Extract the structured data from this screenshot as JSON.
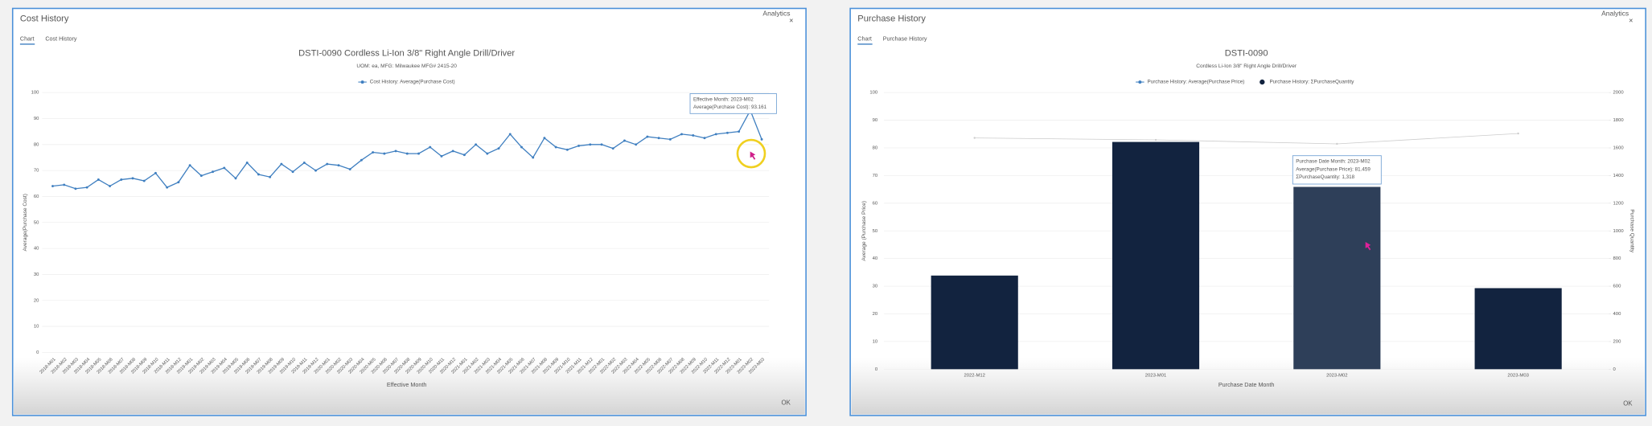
{
  "dialogs": [
    {
      "title": "Cost History",
      "tabs": [
        "Chart",
        "Cost History"
      ],
      "link": "Analytics",
      "close": "×",
      "button": "OK"
    },
    {
      "title": "Purchase History",
      "tabs": [
        "Chart",
        "Purchase History"
      ],
      "link": "Analytics",
      "close": "×",
      "button": "OK"
    }
  ],
  "chart_data": [
    {
      "type": "line",
      "title": "DSTI-0090   Cordless Li-Ion 3/8\" Right Angle Drill/Driver",
      "subtitle": "UOM: ea, MFG: Milwaukee MFG# 2415-20",
      "x_label": "Effective Month",
      "y_label": "Average(Purchase Cost)",
      "categories": [
        "2018-M01",
        "2018-M02",
        "2018-M03",
        "2018-M04",
        "2018-M05",
        "2018-M06",
        "2018-M07",
        "2018-M08",
        "2018-M09",
        "2018-M10",
        "2018-M11",
        "2018-M12",
        "2019-M01",
        "2019-M02",
        "2019-M03",
        "2019-M04",
        "2019-M05",
        "2019-M06",
        "2019-M07",
        "2019-M08",
        "2019-M09",
        "2019-M10",
        "2019-M11",
        "2019-M12",
        "2020-M01",
        "2020-M02",
        "2020-M03",
        "2020-M04",
        "2020-M05",
        "2020-M06",
        "2020-M07",
        "2020-M08",
        "2020-M09",
        "2020-M10",
        "2020-M11",
        "2020-M12",
        "2021-M01",
        "2021-M02",
        "2021-M03",
        "2021-M04",
        "2021-M05",
        "2021-M06",
        "2021-M07",
        "2021-M08",
        "2021-M09",
        "2021-M10",
        "2021-M11",
        "2021-M12",
        "2022-M01",
        "2022-M02",
        "2022-M03",
        "2022-M04",
        "2022-M05",
        "2022-M06",
        "2022-M07",
        "2022-M08",
        "2022-M09",
        "2022-M10",
        "2022-M11",
        "2022-M12",
        "2023-M01",
        "2023-M02",
        "2023-M03"
      ],
      "series": [
        {
          "name": "Cost History: Average(Purchase Cost)",
          "color": "#3f7fc0",
          "values": [
            64,
            64.5,
            63,
            63.5,
            66.5,
            64,
            66.5,
            67,
            66,
            69,
            63.5,
            65.5,
            72,
            68,
            69.5,
            71,
            67,
            73,
            68.5,
            67.5,
            72.5,
            69.5,
            73,
            70,
            72.5,
            72,
            70.5,
            74,
            77,
            76.5,
            77.5,
            76.5,
            76.5,
            79,
            75.5,
            77.5,
            76,
            80,
            76.5,
            78.5,
            84,
            79,
            75,
            82.5,
            79,
            78,
            79.5,
            80,
            80,
            78.5,
            81.5,
            80,
            83,
            82.5,
            82,
            84,
            83.5,
            82.5,
            84,
            84.5,
            85,
            93.161,
            82
          ]
        }
      ],
      "ylim": [
        0,
        100
      ],
      "yticks": [
        0,
        10,
        20,
        30,
        40,
        50,
        60,
        70,
        80,
        90,
        100
      ],
      "grid": true,
      "tooltip": [
        "Effective Month: 2023-M02",
        "Average(Purchase Cost): 93.161"
      ]
    },
    {
      "type": "combo",
      "title": "DSTI-0090",
      "subtitle": "Cordless Li-Ion 3/8\" Right Angle Drill/Driver",
      "x_label": "Purchase Date Month",
      "y_label": "Average (Purchase Price)",
      "y2_label": "Purchase Quantity",
      "categories": [
        "2022-M12",
        "2023-M01",
        "2023-M02",
        "2023-M03"
      ],
      "series": [
        {
          "name": "Purchase History: ΣPurchaseQuantity",
          "kind": "bar",
          "axis": "y2",
          "color": "#12233f",
          "colors": [
            "#12233f",
            "#12233f",
            "#2e3f59",
            "#12233f"
          ],
          "values": [
            677,
            1643,
            1318,
            586
          ]
        },
        {
          "name": "Purchase History: Average(Purchase Price)",
          "kind": "line",
          "color": "#cccccc",
          "values": [
            83.6,
            82.9,
            81.459,
            85.2
          ]
        }
      ],
      "ylim": [
        0,
        100
      ],
      "yticks": [
        0,
        10,
        20,
        30,
        40,
        50,
        60,
        70,
        80,
        90,
        100
      ],
      "y2lim": [
        0,
        2000
      ],
      "y2ticks": [
        0,
        200,
        400,
        600,
        800,
        1000,
        1200,
        1400,
        1600,
        1800,
        2000
      ],
      "grid": true,
      "tooltip": [
        "Purchase Date Month: 2023-M02",
        "Average(Purchase Price): 81.459",
        "ΣPurchaseQuantity: 1,318"
      ]
    }
  ]
}
